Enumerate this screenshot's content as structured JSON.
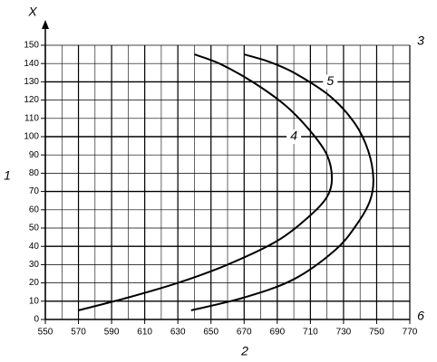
{
  "chart_data": {
    "type": "line",
    "y_label": "X",
    "xlim": [
      550,
      770
    ],
    "xticks": [
      550,
      570,
      590,
      610,
      630,
      650,
      670,
      690,
      710,
      730,
      750,
      770
    ],
    "ylim": [
      0,
      150
    ],
    "yticks": [
      0,
      10,
      20,
      30,
      40,
      50,
      60,
      70,
      80,
      90,
      100,
      110,
      120,
      130,
      140,
      150
    ],
    "grid": true,
    "series": [
      {
        "name": "4",
        "color": "#000000",
        "x": [
          570,
          600,
          630,
          660,
          690,
          710,
          720,
          723,
          720,
          710,
          695,
          675,
          655,
          640
        ],
        "values": [
          5,
          12,
          20,
          30,
          43,
          57,
          67,
          77,
          90,
          103,
          117,
          130,
          140,
          145
        ]
      },
      {
        "name": "5",
        "color": "#000000",
        "x": [
          638,
          670,
          700,
          725,
          738,
          746,
          748,
          745,
          737,
          722,
          700,
          685,
          670
        ],
        "values": [
          5,
          12,
          22,
          38,
          52,
          65,
          77,
          92,
          107,
          122,
          135,
          141,
          145
        ]
      }
    ],
    "annotations": [
      "1",
      "2",
      "3",
      "6"
    ]
  }
}
